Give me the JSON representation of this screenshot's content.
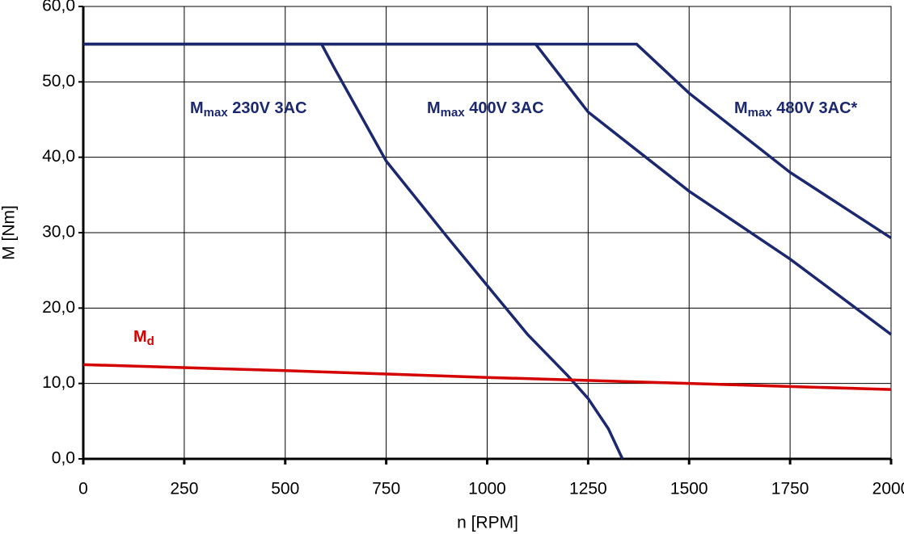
{
  "chart_data": {
    "type": "line",
    "x_label": "n [RPM]",
    "y_label": "M [Nm]",
    "xlim": [
      0,
      2000
    ],
    "ylim": [
      0,
      60
    ],
    "xticks": [
      0,
      250,
      500,
      750,
      1000,
      1250,
      1500,
      1750,
      2000
    ],
    "yticks": [
      {
        "value": 0,
        "label": "0,0"
      },
      {
        "value": 10,
        "label": "10,0"
      },
      {
        "value": 20,
        "label": "20,0"
      },
      {
        "value": 30,
        "label": "30,0"
      },
      {
        "value": 40,
        "label": "40,0"
      },
      {
        "value": 50,
        "label": "50,0"
      },
      {
        "value": 60,
        "label": "60,0"
      }
    ],
    "grid": true,
    "series": [
      {
        "label": {
          "base": "M",
          "sub": "max",
          "text": " 230V 3AC"
        },
        "color": "#1b2870",
        "x": [
          0,
          590,
          620,
          750,
          900,
          1000,
          1100,
          1200,
          1250,
          1300,
          1335
        ],
        "values": [
          55,
          55,
          52,
          39.5,
          29.5,
          23,
          16.5,
          11,
          8,
          4,
          0
        ]
      },
      {
        "label": {
          "base": "M",
          "sub": "max",
          "text": " 400V 3AC"
        },
        "color": "#1b2870",
        "x": [
          0,
          1120,
          1250,
          1500,
          1750,
          2000
        ],
        "values": [
          55,
          55,
          46,
          35.5,
          26.5,
          16.5
        ]
      },
      {
        "label": {
          "base": "M",
          "sub": "max",
          "text": " 480V 3AC*"
        },
        "color": "#1b2870",
        "x": [
          0,
          1370,
          1500,
          1750,
          2000
        ],
        "values": [
          55,
          55,
          48.5,
          38,
          29.3
        ]
      },
      {
        "label": {
          "base": "M",
          "sub": "d"
        },
        "color": "#d40000",
        "x": [
          0,
          500,
          1000,
          1500,
          2000
        ],
        "values": [
          12.5,
          11.7,
          10.8,
          10.0,
          9.2
        ]
      }
    ]
  }
}
